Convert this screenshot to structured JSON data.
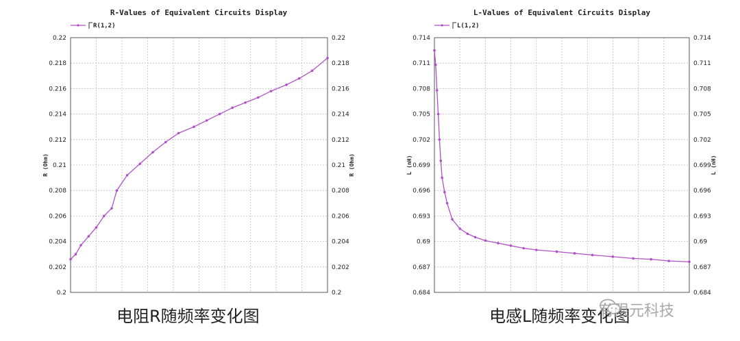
{
  "chart_data": [
    {
      "type": "line",
      "title": "R-Values of Equivalent Circuits Display",
      "xlabel": "",
      "ylabel": "R (Ohm)",
      "ylim": [
        0.2,
        0.22
      ],
      "yticks": [
        "0.2",
        "0.202",
        "0.204",
        "0.206",
        "0.208",
        "0.21",
        "0.212",
        "0.214",
        "0.216",
        "0.218",
        "0.22"
      ],
      "grid": true,
      "legend_position": "top-left",
      "color": "#b050c8",
      "series": [
        {
          "name": "R(1,2)",
          "x": [
            0,
            2,
            4,
            7,
            10,
            13,
            16,
            18,
            22,
            27,
            32,
            37,
            42,
            48,
            53,
            58,
            63,
            68,
            73,
            78,
            84,
            89,
            94,
            100
          ],
          "values": [
            0.2026,
            0.203,
            0.2037,
            0.2044,
            0.2051,
            0.206,
            0.2066,
            0.208,
            0.2092,
            0.2101,
            0.211,
            0.2118,
            0.2125,
            0.213,
            0.2135,
            0.214,
            0.2145,
            0.2149,
            0.2153,
            0.2158,
            0.2163,
            0.2168,
            0.2174,
            0.2184
          ]
        }
      ],
      "caption": "电阻R随频率变化图"
    },
    {
      "type": "line",
      "title": "L-Values of Equivalent Circuits Display",
      "xlabel": "",
      "ylabel": "L (nH)",
      "ylim": [
        0.684,
        0.714
      ],
      "yticks": [
        "0.684",
        "0.687",
        "0.69",
        "0.693",
        "0.696",
        "0.699",
        "0.702",
        "0.705",
        "0.708",
        "0.711",
        "0.714"
      ],
      "grid": true,
      "legend_position": "top-left",
      "color": "#b050c8",
      "series": [
        {
          "name": "L(1,2)",
          "x": [
            0,
            0.5,
            1,
            1.5,
            2,
            2.5,
            3,
            4,
            5,
            7,
            10,
            13,
            16,
            20,
            25,
            30,
            35,
            40,
            48,
            55,
            62,
            70,
            78,
            85,
            92,
            100
          ],
          "values": [
            0.7125,
            0.7108,
            0.7078,
            0.705,
            0.702,
            0.6995,
            0.6975,
            0.6958,
            0.6945,
            0.6926,
            0.6915,
            0.6909,
            0.6905,
            0.6901,
            0.6898,
            0.6895,
            0.6892,
            0.689,
            0.6888,
            0.6886,
            0.6884,
            0.6882,
            0.688,
            0.6879,
            0.6877,
            0.6876
          ]
        }
      ],
      "caption": "电感L随频率变化图"
    }
  ],
  "watermark": {
    "text": "有限元科技"
  }
}
